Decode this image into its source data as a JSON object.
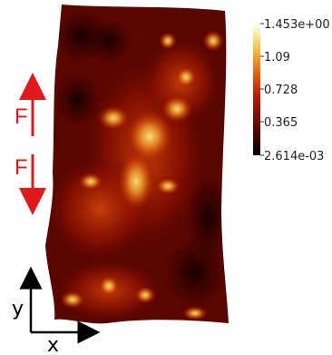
{
  "colorbar": {
    "max_label": "1.453e+00",
    "tick1": "1.09",
    "tick2": "0.728",
    "tick3": "0.365",
    "min_label": "2.614e-03",
    "colormap": [
      "#000000",
      "#3a0000",
      "#7a0a00",
      "#b51c00",
      "#e2530b",
      "#f3a22c",
      "#fbe48a",
      "#ffffff"
    ]
  },
  "forces": {
    "upper_label": "F",
    "lower_label": "F",
    "arrow_color": "#e0191b"
  },
  "axes": {
    "x_label": "x",
    "y_label": "y"
  }
}
